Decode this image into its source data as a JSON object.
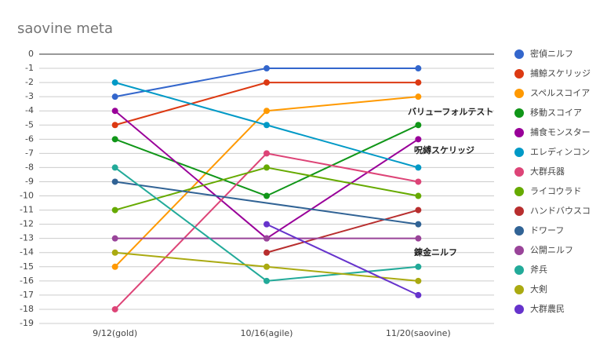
{
  "chart_data": {
    "type": "line",
    "title": "saovine meta",
    "categories": [
      "9/12(gold)",
      "10/16(agile)",
      "11/20(saovine)"
    ],
    "series": [
      {
        "name": "密偵ニルフ",
        "color": "#3366cc",
        "values": [
          -3,
          -1,
          -1
        ]
      },
      {
        "name": "捕鯨スケリッジ",
        "color": "#dc3912",
        "values": [
          -5,
          -2,
          -2
        ]
      },
      {
        "name": "スペルスコイア",
        "color": "#ff9900",
        "values": [
          -15,
          -4,
          -3
        ]
      },
      {
        "name": "移動スコイア",
        "color": "#109618",
        "values": [
          -6,
          -10,
          -5
        ]
      },
      {
        "name": "捕食モンスター",
        "color": "#990099",
        "values": [
          -4,
          -13,
          -6
        ]
      },
      {
        "name": "エレディンコン",
        "color": "#0099c6",
        "values": [
          -2,
          -5,
          -8
        ]
      },
      {
        "name": "大群兵器",
        "color": "#dd4477",
        "values": [
          -18,
          -7,
          -9
        ]
      },
      {
        "name": "ライコウラド",
        "color": "#66aa00",
        "values": [
          -11,
          -8,
          -10
        ]
      },
      {
        "name": "ハンドバウスコ",
        "color": "#b82e2e",
        "values": [
          null,
          -14,
          -11
        ]
      },
      {
        "name": "ドワーフ",
        "color": "#316395",
        "values": [
          -9,
          null,
          -12
        ]
      },
      {
        "name": "公開ニルフ",
        "color": "#994499",
        "values": [
          -13,
          -13,
          -13
        ]
      },
      {
        "name": "斧兵",
        "color": "#22aa99",
        "values": [
          -8,
          -16,
          -15
        ]
      },
      {
        "name": "大剣",
        "color": "#aaaa11",
        "values": [
          -14,
          -15,
          -16
        ]
      },
      {
        "name": "大群農民",
        "color": "#6633cc",
        "values": [
          null,
          -12,
          -17
        ]
      }
    ],
    "annotations": [
      "バリューフォルテスト",
      "呪縛スケリッジ",
      "錬金ニルフ"
    ],
    "ylim": [
      -19,
      0
    ],
    "yticks": [
      0,
      -1,
      -2,
      -3,
      -4,
      -5,
      -6,
      -7,
      -8,
      -9,
      -10,
      -11,
      -12,
      -13,
      -14,
      -15,
      -16,
      -17,
      -18,
      -19
    ],
    "grid": true,
    "interpolate_nulls": true,
    "legend": "right"
  }
}
